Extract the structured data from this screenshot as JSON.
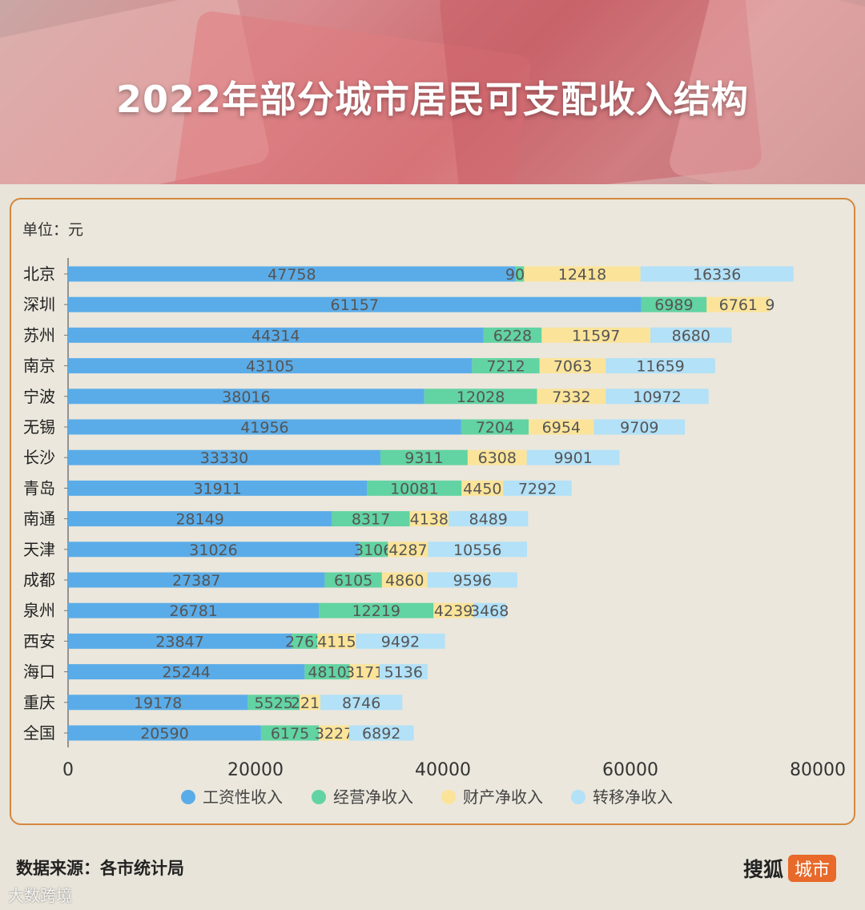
{
  "banner": {
    "title": "2022年部分城市居民可支配收入结构"
  },
  "unit_label": "单位：元",
  "source_label": "数据来源：各市统计局",
  "brand": {
    "name": "搜狐",
    "tag": "城市"
  },
  "watermark": "大数跨境",
  "colors": {
    "wage": "#5aace8",
    "business": "#62d3a2",
    "property": "#fbe49a",
    "transfer": "#b2e1f8",
    "border": "#d4883f",
    "value_text": "#555555"
  },
  "chart_data": {
    "type": "bar",
    "orientation": "horizontal",
    "stacked": true,
    "title": "2022年部分城市居民可支配收入结构",
    "unit": "单位：元",
    "categories": [
      "北京",
      "深圳",
      "苏州",
      "南京",
      "宁波",
      "无锡",
      "长沙",
      "青岛",
      "南通",
      "天津",
      "成都",
      "泉州",
      "西安",
      "海口",
      "重庆",
      "全国"
    ],
    "series": [
      {
        "name": "工资性收入",
        "color": "#5aace8",
        "values": [
          47758,
          61157,
          44314,
          43105,
          38016,
          41956,
          33330,
          31911,
          28149,
          31026,
          27387,
          26781,
          23847,
          25244,
          19178,
          20590
        ]
      },
      {
        "name": "经营净收入",
        "color": "#62d3a2",
        "values": [
          903,
          6989,
          6228,
          7212,
          12028,
          7204,
          9311,
          10081,
          8317,
          3106,
          6105,
          12219,
          2761,
          4810,
          5525,
          6175
        ]
      },
      {
        "name": "财产净收入",
        "color": "#fbe49a",
        "values": [
          12418,
          6761,
          11597,
          7063,
          7332,
          6954,
          6308,
          4450,
          4138,
          4287,
          4860,
          4239,
          4115,
          3171,
          2217,
          3227
        ]
      },
      {
        "name": "转移净收入",
        "color": "#b2e1f8",
        "values": [
          16336,
          9,
          8680,
          11659,
          10972,
          9709,
          9901,
          7292,
          8489,
          10556,
          9596,
          3468,
          9492,
          5136,
          8746,
          6892
        ]
      }
    ],
    "xlim": [
      0,
      80000
    ],
    "xticks": [
      "0",
      "20000",
      "40000",
      "60000",
      "80000"
    ],
    "grid": false,
    "legend": "bottom"
  }
}
